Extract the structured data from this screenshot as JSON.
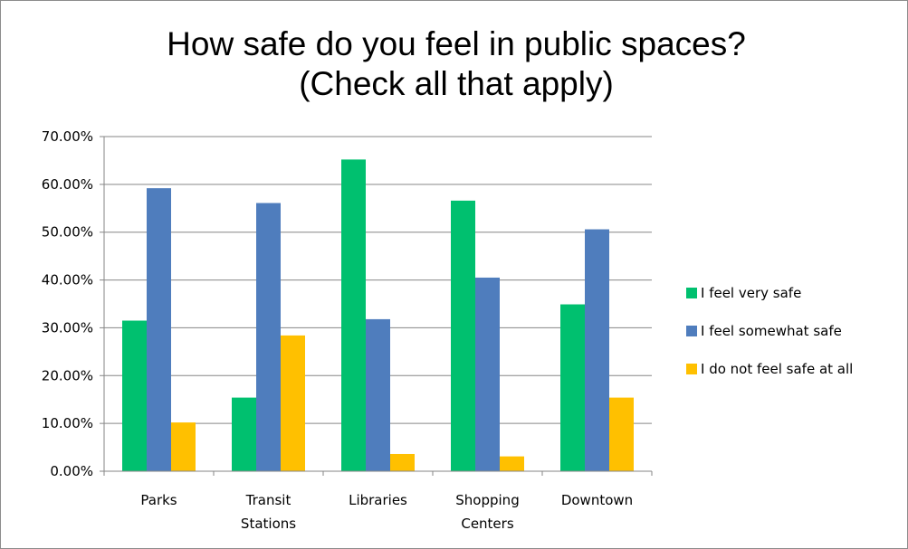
{
  "chart_data": {
    "type": "bar",
    "title": [
      "How safe do you feel in public spaces?",
      "(Check all that apply)"
    ],
    "categories": [
      [
        "Parks"
      ],
      [
        "Transit",
        "Stations"
      ],
      [
        "Libraries"
      ],
      [
        "Shopping",
        "Centers"
      ],
      [
        "Downtown"
      ]
    ],
    "series": [
      {
        "name": "I feel very safe",
        "color": "#00c06f",
        "values": [
          0.315,
          0.154,
          0.652,
          0.566,
          0.349
        ]
      },
      {
        "name": "I feel somewhat safe",
        "color": "#4f7dbd",
        "values": [
          0.592,
          0.561,
          0.318,
          0.405,
          0.506
        ]
      },
      {
        "name": "I do not feel safe at all",
        "color": "#ffc000",
        "values": [
          0.102,
          0.284,
          0.036,
          0.031,
          0.154
        ]
      }
    ],
    "ylim": [
      0,
      0.7
    ],
    "yticks": [
      0,
      0.1,
      0.2,
      0.3,
      0.4,
      0.5,
      0.6,
      0.7
    ],
    "ytick_labels": [
      "0.00%",
      "10.00%",
      "20.00%",
      "30.00%",
      "40.00%",
      "50.00%",
      "60.00%",
      "70.00%"
    ],
    "xlabel": "",
    "ylabel": "",
    "grid": true,
    "legend_position": "right"
  }
}
